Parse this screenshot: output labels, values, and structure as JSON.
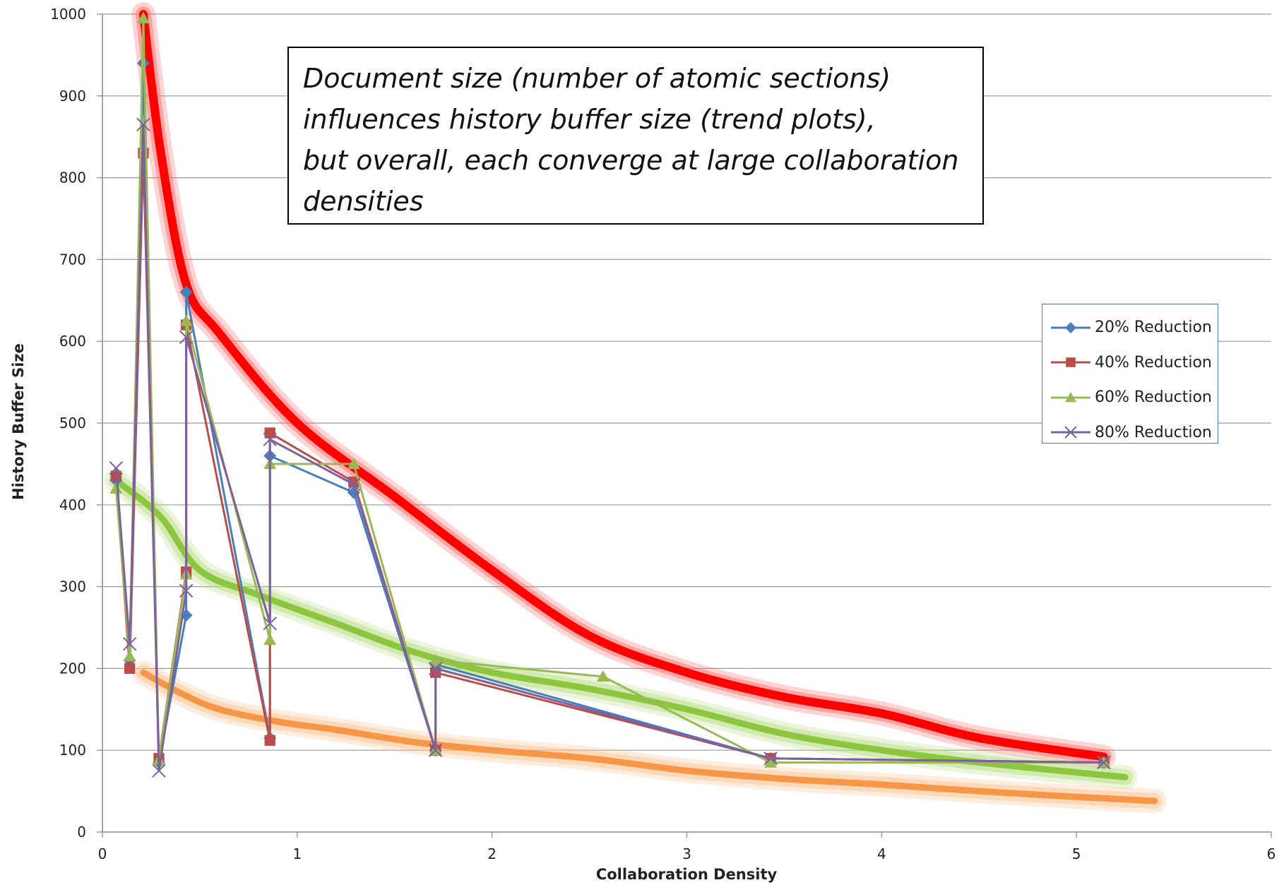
{
  "chart_data": {
    "type": "line",
    "title": "",
    "xlabel": "Collaboration Density",
    "ylabel": "History Buffer Size",
    "xlim": [
      0,
      6
    ],
    "ylim": [
      0,
      1000
    ],
    "xticks": [
      "0",
      "1",
      "2",
      "3",
      "4",
      "5",
      "6"
    ],
    "yticks": [
      "0",
      "100",
      "200",
      "300",
      "400",
      "500",
      "600",
      "700",
      "800",
      "900",
      "1000"
    ],
    "grid": true,
    "legend_position": "right",
    "annotation": [
      "Document size (number of atomic sections)",
      "influences history buffer size (trend plots),",
      "but overall, each converge at large collaboration",
      "densities"
    ],
    "series": [
      {
        "name": "20% Reduction",
        "color": "#4a7ebb",
        "marker": "diamond",
        "x": [
          0.07,
          0.14,
          0.21,
          0.29,
          0.43,
          0.43,
          0.86,
          0.86,
          1.29,
          1.71,
          1.71,
          3.43,
          5.14
        ],
        "y": [
          430,
          210,
          940,
          85,
          265,
          660,
          115,
          460,
          415,
          100,
          205,
          90,
          85
        ]
      },
      {
        "name": "40% Reduction",
        "color": "#be4b48",
        "marker": "square",
        "x": [
          0.07,
          0.14,
          0.21,
          0.29,
          0.43,
          0.43,
          0.86,
          0.86,
          1.29,
          1.71,
          1.71,
          3.43,
          5.14
        ],
        "y": [
          435,
          200,
          830,
          90,
          318,
          620,
          112,
          488,
          428,
          100,
          195,
          90,
          85
        ]
      },
      {
        "name": "60% Reduction",
        "color": "#98b954",
        "marker": "triangle",
        "x": [
          0.07,
          0.14,
          0.21,
          0.29,
          0.43,
          0.43,
          0.86,
          0.86,
          1.29,
          1.71,
          1.71,
          2.57,
          3.43,
          5.14
        ],
        "y": [
          420,
          215,
          995,
          88,
          315,
          625,
          235,
          450,
          450,
          100,
          210,
          190,
          85,
          85
        ]
      },
      {
        "name": "80% Reduction",
        "color": "#7d60a0",
        "marker": "x",
        "x": [
          0.07,
          0.14,
          0.21,
          0.29,
          0.43,
          0.43,
          0.86,
          0.86,
          1.29,
          1.71,
          1.71,
          3.43,
          5.14
        ],
        "y": [
          445,
          230,
          865,
          75,
          295,
          605,
          255,
          480,
          425,
          100,
          200,
          90,
          85
        ]
      }
    ],
    "trend_lines": [
      {
        "color": "#ff0000",
        "glow": "#ff6666",
        "x": [
          0.21,
          0.3,
          0.43,
          0.6,
          1.0,
          1.5,
          2.0,
          2.5,
          3.0,
          3.5,
          4.0,
          4.5,
          5.14
        ],
        "y": [
          1000,
          830,
          670,
          610,
          500,
          410,
          320,
          240,
          195,
          165,
          145,
          115,
          92
        ]
      },
      {
        "color": "#8cc63f",
        "glow": "#b5dc7e",
        "x": [
          0.07,
          0.3,
          0.5,
          0.8,
          1.2,
          1.6,
          2.0,
          2.5,
          3.0,
          3.5,
          4.0,
          4.5,
          5.25
        ],
        "y": [
          430,
          385,
          320,
          290,
          255,
          220,
          195,
          175,
          150,
          120,
          100,
          85,
          67
        ]
      },
      {
        "color": "#f79646",
        "glow": "#fbc08c",
        "x": [
          0.21,
          0.4,
          0.6,
          0.9,
          1.2,
          1.6,
          2.0,
          2.5,
          3.0,
          3.5,
          4.0,
          4.5,
          5.0,
          5.4
        ],
        "y": [
          195,
          170,
          150,
          135,
          125,
          110,
          100,
          90,
          75,
          65,
          58,
          50,
          43,
          38
        ]
      }
    ]
  }
}
